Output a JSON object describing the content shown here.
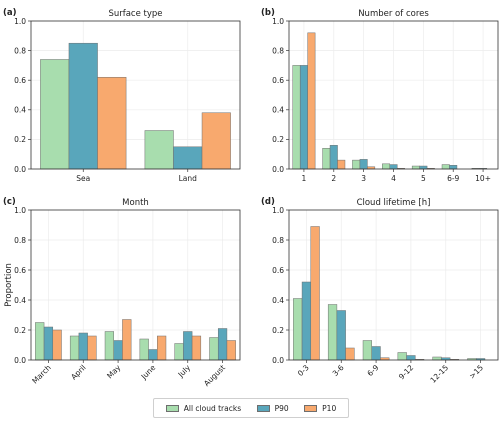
{
  "colors": {
    "all": "#a8ddae",
    "p90": "#59a6bb",
    "p10": "#f8a96e",
    "edge": "#6e6e6e",
    "grid": "#ececec"
  },
  "legend": {
    "items": [
      {
        "name": "All cloud tracks",
        "color_key": "all"
      },
      {
        "name": "P90",
        "color_key": "p90"
      },
      {
        "name": "P10",
        "color_key": "p10"
      }
    ]
  },
  "ylabel": "Proportion",
  "chart_data": [
    {
      "type": "bar",
      "panel": "(a)",
      "title": "Surface type",
      "categories": [
        "Sea",
        "Land"
      ],
      "series": [
        {
          "name": "All cloud tracks",
          "values": [
            0.74,
            0.26
          ]
        },
        {
          "name": "P90",
          "values": [
            0.85,
            0.15
          ]
        },
        {
          "name": "P10",
          "values": [
            0.62,
            0.38
          ]
        }
      ],
      "ylim": [
        0,
        1.0
      ],
      "yticks": [
        "0.0",
        "0.2",
        "0.4",
        "0.6",
        "0.8",
        "1.0"
      ],
      "tick_rotation": 0,
      "grid": true
    },
    {
      "type": "bar",
      "panel": "(b)",
      "title": "Number of cores",
      "categories": [
        "1",
        "2",
        "3",
        "4",
        "5",
        "6-9",
        "10+"
      ],
      "series": [
        {
          "name": "All cloud tracks",
          "values": [
            0.7,
            0.14,
            0.06,
            0.035,
            0.02,
            0.03,
            0.005
          ]
        },
        {
          "name": "P90",
          "values": [
            0.7,
            0.16,
            0.065,
            0.03,
            0.02,
            0.025,
            0.005
          ]
        },
        {
          "name": "P10",
          "values": [
            0.92,
            0.06,
            0.015,
            0.005,
            0.005,
            0.0,
            0.0
          ]
        }
      ],
      "ylim": [
        0,
        1.0
      ],
      "yticks": [
        "0.0",
        "0.2",
        "0.4",
        "0.6",
        "0.8",
        "1.0"
      ],
      "tick_rotation": 0,
      "grid": true
    },
    {
      "type": "bar",
      "panel": "(c)",
      "title": "Month",
      "categories": [
        "March",
        "April",
        "May",
        "June",
        "July",
        "August"
      ],
      "series": [
        {
          "name": "All cloud tracks",
          "values": [
            0.25,
            0.16,
            0.19,
            0.14,
            0.11,
            0.15
          ]
        },
        {
          "name": "P90",
          "values": [
            0.22,
            0.18,
            0.13,
            0.07,
            0.19,
            0.21
          ]
        },
        {
          "name": "P10",
          "values": [
            0.2,
            0.16,
            0.27,
            0.16,
            0.16,
            0.13
          ]
        }
      ],
      "ylim": [
        0,
        1.0
      ],
      "yticks": [
        "0.0",
        "0.2",
        "0.4",
        "0.6",
        "0.8",
        "1.0"
      ],
      "tick_rotation": -45,
      "grid": true
    },
    {
      "type": "bar",
      "panel": "(d)",
      "title": "Cloud lifetime [h]",
      "categories": [
        "0-3",
        "3-6",
        "6-9",
        "9-12",
        "12-15",
        ">15"
      ],
      "series": [
        {
          "name": "All cloud tracks",
          "values": [
            0.41,
            0.37,
            0.13,
            0.05,
            0.02,
            0.01
          ]
        },
        {
          "name": "P90",
          "values": [
            0.52,
            0.33,
            0.09,
            0.03,
            0.015,
            0.01
          ]
        },
        {
          "name": "P10",
          "values": [
            0.89,
            0.08,
            0.015,
            0.005,
            0.005,
            0.0
          ]
        }
      ],
      "ylim": [
        0,
        1.0
      ],
      "yticks": [
        "0.0",
        "0.2",
        "0.4",
        "0.6",
        "0.8",
        "1.0"
      ],
      "tick_rotation": -45,
      "grid": true
    }
  ]
}
